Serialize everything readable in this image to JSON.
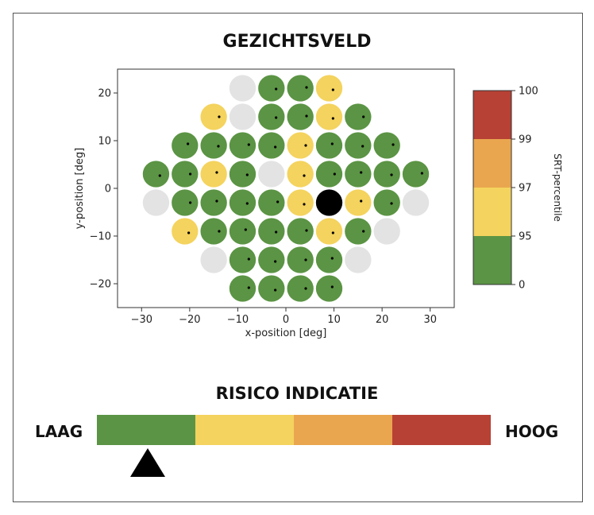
{
  "colors": {
    "green": "#5b9444",
    "yellow": "#f4d35e",
    "orange": "#e9a64f",
    "red": "#b74134",
    "gray": "#e3e3e3",
    "black": "#000000"
  },
  "chart_data": {
    "type": "scatter",
    "title": "GEZICHTSVELD",
    "xlabel": "x-position [deg]",
    "ylabel": "y-position [deg]",
    "xlim": [
      -35,
      35
    ],
    "ylim": [
      -25,
      25
    ],
    "xticks": [
      -30,
      -20,
      -10,
      0,
      10,
      20,
      30
    ],
    "yticks": [
      -20,
      -10,
      0,
      10,
      20
    ],
    "grid": false,
    "colorbar": {
      "label": "SRT-percentile",
      "tick_labels": [
        "0",
        "95",
        "97",
        "99",
        "100"
      ],
      "bands": [
        "green",
        "yellow",
        "orange",
        "red"
      ]
    },
    "points": [
      {
        "x": -9,
        "y": 21,
        "c": "gray"
      },
      {
        "x": -3,
        "y": 21,
        "c": "green"
      },
      {
        "x": 3,
        "y": 21,
        "c": "green"
      },
      {
        "x": 9,
        "y": 21,
        "c": "yellow"
      },
      {
        "x": -15,
        "y": 15,
        "c": "yellow"
      },
      {
        "x": -9,
        "y": 15,
        "c": "gray"
      },
      {
        "x": -3,
        "y": 15,
        "c": "green"
      },
      {
        "x": 3,
        "y": 15,
        "c": "green"
      },
      {
        "x": 9,
        "y": 15,
        "c": "yellow"
      },
      {
        "x": 15,
        "y": 15,
        "c": "green"
      },
      {
        "x": -21,
        "y": 9,
        "c": "green"
      },
      {
        "x": -15,
        "y": 9,
        "c": "green"
      },
      {
        "x": -9,
        "y": 9,
        "c": "green"
      },
      {
        "x": -3,
        "y": 9,
        "c": "green"
      },
      {
        "x": 3,
        "y": 9,
        "c": "yellow"
      },
      {
        "x": 9,
        "y": 9,
        "c": "green"
      },
      {
        "x": 15,
        "y": 9,
        "c": "green"
      },
      {
        "x": 21,
        "y": 9,
        "c": "green"
      },
      {
        "x": -27,
        "y": 3,
        "c": "green"
      },
      {
        "x": -21,
        "y": 3,
        "c": "green"
      },
      {
        "x": -15,
        "y": 3,
        "c": "yellow"
      },
      {
        "x": -9,
        "y": 3,
        "c": "green"
      },
      {
        "x": -3,
        "y": 3,
        "c": "gray"
      },
      {
        "x": 3,
        "y": 3,
        "c": "yellow"
      },
      {
        "x": 9,
        "y": 3,
        "c": "green"
      },
      {
        "x": 15,
        "y": 3,
        "c": "green"
      },
      {
        "x": 21,
        "y": 3,
        "c": "green"
      },
      {
        "x": 27,
        "y": 3,
        "c": "green"
      },
      {
        "x": -27,
        "y": -3,
        "c": "gray"
      },
      {
        "x": -21,
        "y": -3,
        "c": "green"
      },
      {
        "x": -15,
        "y": -3,
        "c": "green"
      },
      {
        "x": -9,
        "y": -3,
        "c": "green"
      },
      {
        "x": -3,
        "y": -3,
        "c": "green"
      },
      {
        "x": 3,
        "y": -3,
        "c": "yellow"
      },
      {
        "x": 9,
        "y": -3,
        "c": "black"
      },
      {
        "x": 15,
        "y": -3,
        "c": "yellow"
      },
      {
        "x": 21,
        "y": -3,
        "c": "green"
      },
      {
        "x": 27,
        "y": -3,
        "c": "gray"
      },
      {
        "x": -21,
        "y": -9,
        "c": "yellow"
      },
      {
        "x": -15,
        "y": -9,
        "c": "green"
      },
      {
        "x": -9,
        "y": -9,
        "c": "green"
      },
      {
        "x": -3,
        "y": -9,
        "c": "green"
      },
      {
        "x": 3,
        "y": -9,
        "c": "green"
      },
      {
        "x": 9,
        "y": -9,
        "c": "yellow"
      },
      {
        "x": 15,
        "y": -9,
        "c": "green"
      },
      {
        "x": 21,
        "y": -9,
        "c": "gray"
      },
      {
        "x": -15,
        "y": -15,
        "c": "gray"
      },
      {
        "x": -9,
        "y": -15,
        "c": "green"
      },
      {
        "x": -3,
        "y": -15,
        "c": "green"
      },
      {
        "x": 3,
        "y": -15,
        "c": "green"
      },
      {
        "x": 9,
        "y": -15,
        "c": "green"
      },
      {
        "x": 15,
        "y": -15,
        "c": "gray"
      },
      {
        "x": -9,
        "y": -21,
        "c": "green"
      },
      {
        "x": -3,
        "y": -21,
        "c": "green"
      },
      {
        "x": 3,
        "y": -21,
        "c": "green"
      },
      {
        "x": 9,
        "y": -21,
        "c": "green"
      }
    ]
  },
  "risk": {
    "title": "RISICO INDICATIE",
    "low_label": "LAAG",
    "high_label": "HOOG",
    "segments": [
      "green",
      "yellow",
      "orange",
      "red"
    ],
    "pointer_fraction": 0.13
  }
}
